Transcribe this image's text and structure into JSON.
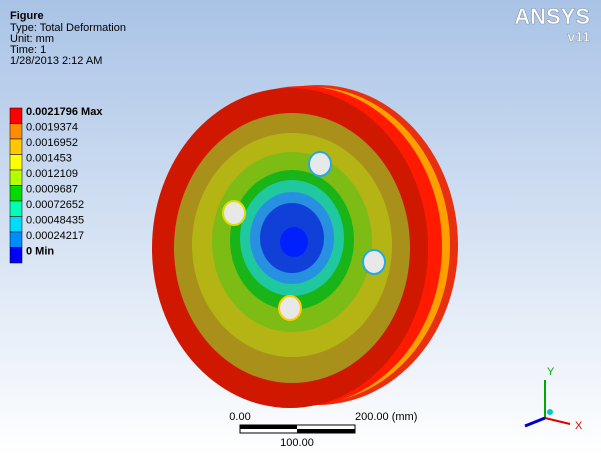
{
  "header": {
    "title": "Figure",
    "lines": [
      "Type: Total Deformation",
      "Unit: mm",
      "Time: 1",
      "1/28/2013 2:12 AM"
    ]
  },
  "legend": [
    {
      "label": "0.0021796 Max",
      "color": "#ff0000"
    },
    {
      "label": "0.0019374",
      "color": "#ff8c00"
    },
    {
      "label": "0.0016952",
      "color": "#ffc800"
    },
    {
      "label": "0.001453",
      "color": "#ffff00"
    },
    {
      "label": "0.0012109",
      "color": "#b4ff00"
    },
    {
      "label": "0.0009687",
      "color": "#00dc00"
    },
    {
      "label": "0.00072652",
      "color": "#00ffb4"
    },
    {
      "label": "0.00048435",
      "color": "#00dcff"
    },
    {
      "label": "0.00024217",
      "color": "#008cff"
    },
    {
      "label": "0 Min",
      "color": "#0000ff"
    }
  ],
  "logo": {
    "brand": "ANSYS",
    "version": "v11"
  },
  "scale_bar": {
    "left": "0.00",
    "right": "200.00 (mm)",
    "middle": "100.00"
  },
  "triad": {
    "y": "Y",
    "x": "X"
  }
}
